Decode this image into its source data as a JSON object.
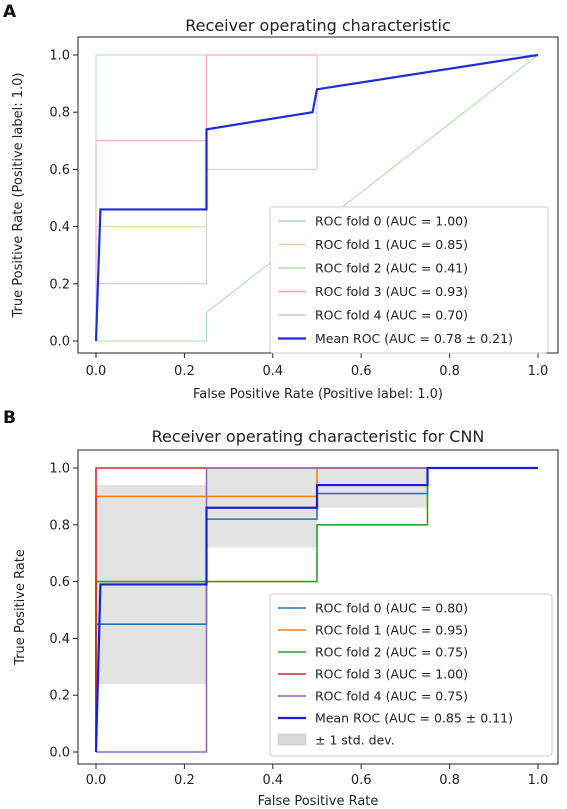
{
  "chart_data": [
    {
      "panel": "A",
      "type": "line",
      "title": "Receiver operating characteristic",
      "xlabel": "False Positive Rate (Positive label: 1.0)",
      "ylabel": "True Positive Rate (Positive label: 1.0)",
      "xlim": [
        0.0,
        1.0
      ],
      "ylim": [
        0.0,
        1.0
      ],
      "xticks": [
        "0.0",
        "0.2",
        "0.4",
        "0.6",
        "0.8",
        "1.0"
      ],
      "yticks": [
        "0.0",
        "0.2",
        "0.4",
        "0.6",
        "0.8",
        "1.0"
      ],
      "grid": false,
      "legend_position": "lower-right",
      "series": [
        {
          "name": "ROC fold 0 (AUC = 1.00)",
          "color": "#aed4ea",
          "width": 1,
          "x": [
            0,
            0,
            1
          ],
          "y": [
            0,
            1,
            1
          ]
        },
        {
          "name": "ROC fold 1 (AUC = 0.85)",
          "color": "#fdcf9e",
          "width": 1,
          "x": [
            0,
            0,
            0.25,
            0.25,
            1
          ],
          "y": [
            0,
            0.4,
            0.4,
            1,
            1
          ]
        },
        {
          "name": "ROC fold 2 (AUC = 0.41)",
          "color": "#a8dca8",
          "width": 1,
          "x": [
            0,
            0.25,
            0.25,
            1
          ],
          "y": [
            0,
            0,
            0.1,
            1
          ]
        },
        {
          "name": "ROC fold 3 (AUC = 0.93)",
          "color": "#f1a6a6",
          "width": 1,
          "x": [
            0,
            0,
            0.25,
            0.25,
            1
          ],
          "y": [
            0,
            0.7,
            0.7,
            1,
            1
          ]
        },
        {
          "name": "ROC fold 4 (AUC = 0.70)",
          "color": "#d3c2e4",
          "width": 1,
          "x": [
            0,
            0,
            0.25,
            0.25,
            0.5,
            0.5,
            1
          ],
          "y": [
            0,
            0.2,
            0.2,
            0.6,
            0.6,
            1,
            1
          ]
        },
        {
          "name": "Mean ROC (AUC = 0.78 ± 0.21)",
          "color": "#1f2dd8",
          "width": 2.2,
          "x": [
            0,
            0.01,
            0.25,
            0.25,
            0.49,
            0.5,
            1
          ],
          "y": [
            0,
            0.46,
            0.46,
            0.74,
            0.8,
            0.88,
            1
          ]
        }
      ]
    },
    {
      "panel": "B",
      "type": "line",
      "title": "Receiver operating characteristic for CNN",
      "xlabel": "False Positive Rate",
      "ylabel": "True Positive Rate",
      "xlim": [
        0.0,
        1.0
      ],
      "ylim": [
        0.0,
        1.0
      ],
      "xticks": [
        "0.0",
        "0.2",
        "0.4",
        "0.6",
        "0.8",
        "1.0"
      ],
      "yticks": [
        "0.0",
        "0.2",
        "0.4",
        "0.6",
        "0.8",
        "1.0"
      ],
      "grid": false,
      "legend_position": "lower-right",
      "band": {
        "name": "± 1 std. dev.",
        "color": "#d9d9d9",
        "x": [
          0,
          0.01,
          0.25,
          0.25,
          0.5,
          0.5,
          0.75,
          0.75,
          1
        ],
        "upper": [
          0.94,
          0.94,
          0.94,
          1.0,
          1.0,
          1.0,
          1.0,
          1.0,
          1.0
        ],
        "lower": [
          0.24,
          0.24,
          0.24,
          0.72,
          0.72,
          0.86,
          0.86,
          1.0,
          1.0
        ]
      },
      "series": [
        {
          "name": "ROC fold 0 (AUC = 0.80)",
          "color": "#1f77b4",
          "width": 1.6,
          "x": [
            0,
            0,
            0.25,
            0.25,
            0.5,
            0.5,
            0.75,
            0.75,
            1
          ],
          "y": [
            0,
            0.45,
            0.45,
            0.82,
            0.82,
            0.91,
            0.91,
            1,
            1
          ]
        },
        {
          "name": "ROC fold 1 (AUC = 0.95)",
          "color": "#ff7f0e",
          "width": 1.6,
          "x": [
            0,
            0,
            0.5,
            0.5,
            1
          ],
          "y": [
            0,
            0.9,
            0.9,
            1,
            1
          ]
        },
        {
          "name": "ROC fold 2 (AUC = 0.75)",
          "color": "#2ca02c",
          "width": 1.6,
          "x": [
            0,
            0,
            0.25,
            0.25,
            0.5,
            0.5,
            0.75,
            0.75,
            1
          ],
          "y": [
            0,
            0.6,
            0.6,
            0.6,
            0.6,
            0.8,
            0.8,
            1,
            1
          ]
        },
        {
          "name": "ROC fold 3 (AUC = 1.00)",
          "color": "#d62728",
          "width": 1.6,
          "x": [
            0,
            0,
            1
          ],
          "y": [
            0,
            1,
            1
          ]
        },
        {
          "name": "ROC fold 4 (AUC = 0.75)",
          "color": "#9467bd",
          "width": 1.6,
          "x": [
            0,
            0.25,
            0.25,
            1
          ],
          "y": [
            0,
            0,
            1,
            1
          ]
        },
        {
          "name": "Mean ROC (AUC = 0.85 ± 0.11)",
          "color": "#1a1fd6",
          "width": 2.2,
          "x": [
            0,
            0.01,
            0.25,
            0.25,
            0.5,
            0.5,
            0.75,
            0.75,
            1
          ],
          "y": [
            0,
            0.59,
            0.59,
            0.86,
            0.86,
            0.94,
            0.94,
            1,
            1
          ]
        }
      ]
    }
  ]
}
